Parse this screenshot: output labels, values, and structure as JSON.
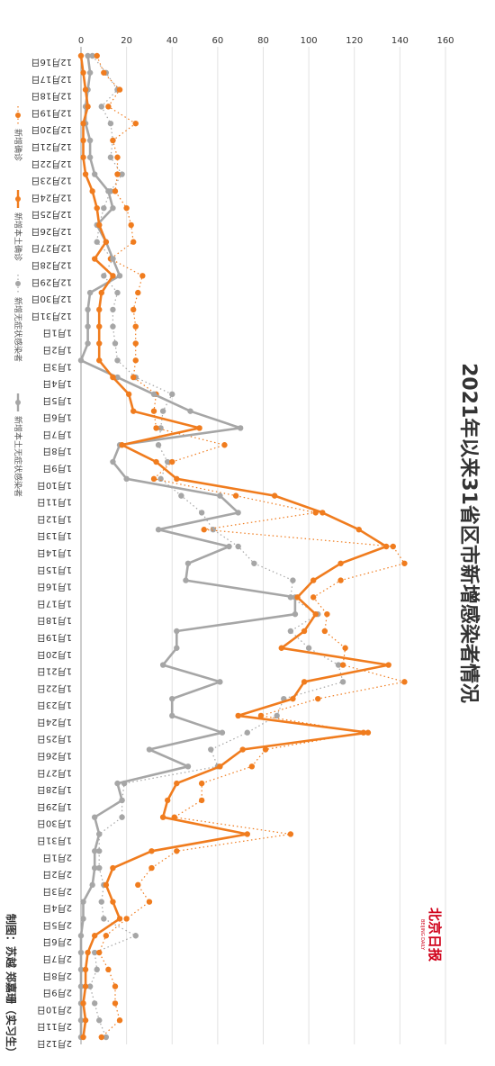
{
  "chart_data": {
    "type": "line",
    "title": "2021年以来31省区市新增感染者情况",
    "ylim": [
      0,
      160
    ],
    "yticks": [
      0,
      20,
      40,
      60,
      80,
      100,
      120,
      140,
      160
    ],
    "categories": [
      "12月16日",
      "12月17日",
      "12月18日",
      "12月19日",
      "12月20日",
      "12月21日",
      "12月22日",
      "12月23日",
      "12月24日",
      "12月25日",
      "12月26日",
      "12月27日",
      "12月28日",
      "12月29日",
      "12月30日",
      "12月31日",
      "1月1日",
      "1月2日",
      "1月3日",
      "1月4日",
      "1月5日",
      "1月6日",
      "1月7日",
      "1月8日",
      "1月9日",
      "1月10日",
      "1月11日",
      "1月12日",
      "1月13日",
      "1月14日",
      "1月15日",
      "1月16日",
      "1月17日",
      "1月18日",
      "1月19日",
      "1月20日",
      "1月21日",
      "1月22日",
      "1月23日",
      "1月24日",
      "1月25日",
      "1月26日",
      "1月27日",
      "1月28日",
      "1月29日",
      "1月30日",
      "1月31日",
      "2月1日",
      "2月2日",
      "2月3日",
      "2月4日",
      "2月5日",
      "2月6日",
      "2月7日",
      "2月8日",
      "2月9日",
      "2月10日",
      "2月11日",
      "2月12日"
    ],
    "grid": true,
    "legend_position": "bottom",
    "series": [
      {
        "name": "新增确诊",
        "color": "#f07c1e",
        "style": "dotted",
        "values": [
          7,
          10,
          17,
          12,
          24,
          14,
          16,
          16,
          15,
          20,
          22,
          23,
          13,
          27,
          25,
          23,
          24,
          24,
          24,
          23,
          33,
          32,
          33,
          63,
          40,
          32,
          68,
          103,
          54,
          137,
          142,
          114,
          102,
          108,
          107,
          116,
          115,
          142,
          104,
          79,
          124,
          81,
          75,
          53,
          53,
          41,
          92,
          42,
          31,
          25,
          30,
          20,
          11,
          8,
          12,
          15,
          15,
          17,
          9
        ]
      },
      {
        "name": "新增本土确诊",
        "color": "#f07c1e",
        "style": "solid",
        "values": [
          0,
          1,
          2,
          3,
          1,
          1,
          1,
          2,
          5,
          7,
          8,
          11,
          6,
          14,
          9,
          8,
          8,
          8,
          8,
          14,
          21,
          23,
          52,
          18,
          33,
          42,
          85,
          106,
          122,
          134,
          114,
          102,
          95,
          103,
          98,
          88,
          135,
          98,
          93,
          69,
          126,
          71,
          61,
          42,
          38,
          36,
          73,
          31,
          14,
          11,
          14,
          17,
          6,
          3,
          2,
          2,
          1,
          2,
          1
        ]
      },
      {
        "name": "新增无症状感染者",
        "color": "#a6a6a6",
        "style": "dotted",
        "values": [
          5,
          11,
          16,
          9,
          13,
          14,
          13,
          18,
          13,
          10,
          8,
          7,
          14,
          10,
          16,
          14,
          14,
          15,
          16,
          24,
          40,
          36,
          35,
          34,
          38,
          35,
          44,
          53,
          58,
          69,
          76,
          93,
          92,
          104,
          92,
          100,
          113,
          115,
          89,
          86,
          73,
          57,
          60,
          19,
          18,
          18,
          8,
          8,
          8,
          10,
          9,
          10,
          24,
          6,
          7,
          4,
          6,
          8,
          11
        ]
      },
      {
        "name": "新增本土无症状感染者",
        "color": "#a6a6a6",
        "style": "solid",
        "values": [
          3,
          4,
          3,
          2,
          2,
          4,
          4,
          6,
          12,
          14,
          7,
          11,
          14,
          17,
          4,
          3,
          3,
          3,
          0,
          16,
          32,
          48,
          70,
          17,
          14,
          20,
          61,
          69,
          34,
          65,
          47,
          46,
          94,
          94,
          42,
          42,
          36,
          61,
          40,
          40,
          62,
          30,
          47,
          16,
          18,
          6,
          8,
          6,
          6,
          5,
          1,
          1,
          0,
          0,
          0,
          0,
          0,
          0,
          0
        ]
      }
    ]
  },
  "credit": "制图：苏越 郑嘉珊（实习生）",
  "logo": {
    "cn": "北京日报",
    "en": "BEIJING DAILY"
  }
}
